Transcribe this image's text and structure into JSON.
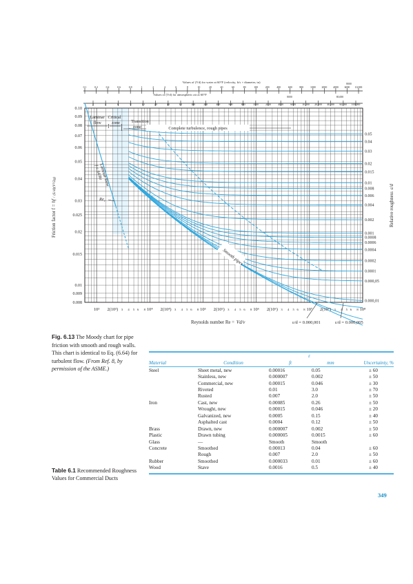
{
  "colors": {
    "accent": "#1a8fc8",
    "curve": "#2ea8e0",
    "grid": "#231f20"
  },
  "chart": {
    "top_axis_water_title": "Values of (Vd) for water at 60°F (velocity, ft/s × diameter, in)",
    "top_axis_air_title": "Values of (Vd) for atmospheric air at 60°F",
    "top_axis_water_ticks": [
      "0.1",
      "0.2",
      "0.4",
      "0.6",
      "0.8",
      "1",
      "2",
      "4",
      "6",
      "8",
      "10",
      "20",
      "40",
      "60",
      "80",
      "100",
      "200",
      "400",
      "600",
      "800",
      "1000",
      "2000",
      "4000",
      "6000",
      "10,000"
    ],
    "top_axis_water_extra": "8000",
    "top_axis_air_ticks": [
      "2",
      "4",
      "6",
      "8",
      "10",
      "20",
      "40",
      "60",
      "100",
      "200",
      "400",
      "600",
      "800",
      "1000",
      "2000",
      "4000",
      "6000",
      "10,000",
      "20,000",
      "40,000",
      "60,000",
      "100,000"
    ],
    "top_axis_air_extra_a": "8000",
    "top_axis_air_extra_b": "80,000",
    "regions": {
      "laminar": "Laminar flow",
      "critical": "Critical zone",
      "transition": "Transition zone",
      "complete": "Complete turbulence, rough pipes"
    },
    "laminar_label": "Laminar flow",
    "laminar_formula": "f = 64/Re",
    "rec_label": "Re",
    "rec_sub": "c",
    "smooth_label": "Smooth pipes",
    "y_axis_label": "Friction factor f =",
    "y_axis_formula_num": "hf",
    "y_axis_formula_den": "(L/d)(V²/2g)",
    "y_ticks": [
      "0.10",
      "0.09",
      "0.08",
      "0.07",
      "0.06",
      "0.05",
      "0.04",
      "0.03",
      "0.025",
      "0.02",
      "0.015",
      "0.01",
      "0.009",
      "0.008"
    ],
    "x_ticks": [
      "10³",
      "2(10³)",
      "3",
      "4",
      "5",
      "6",
      "8",
      "10⁴",
      "2(10⁴)",
      "3",
      "4",
      "5",
      "6",
      "8",
      "10⁵",
      "2(10⁵)",
      "3",
      "4",
      "5",
      "6",
      "8",
      "10⁶",
      "2(10⁶)",
      "3",
      "4",
      "5",
      "6",
      "8",
      "10⁷",
      "2(10⁷)",
      "3",
      "4",
      "5",
      "6",
      "8",
      "10⁸"
    ],
    "x_label": "Reynolds number Re =",
    "x_label_formula": "Vd/ν",
    "rr_label": "Relative roughness",
    "rr_formula": "ε/d",
    "rr_ticks": [
      "0.05",
      "0.04",
      "0.03",
      "0.02",
      "0.015",
      "0.01",
      "0.008",
      "0.006",
      "0.004",
      "0.002",
      "0.001",
      "0.0008",
      "0.0006",
      "0.0004",
      "0.0002",
      "0.0001",
      "0.000,05",
      "0.000,01"
    ],
    "bottom_callout_a": "ε/d = 0.000,001",
    "bottom_callout_b": "ε/d = 0.000,005"
  },
  "figure_caption": {
    "label": "Fig. 6.13",
    "text": " The Moody chart for pipe friction with smooth and rough walls. This chart is identical to Eq. (6.64) for turbulent flow. ",
    "source": "(From Ref. 8, by permission of the ASME.)"
  },
  "table_caption": {
    "label": "Table 6.1",
    "text": " Recommended Roughness Values for Commercial Ducts"
  },
  "table": {
    "eps_header": "ε",
    "headers": [
      "Material",
      "Condition",
      "ft",
      "mm",
      "Uncertainty, %"
    ],
    "rows": [
      [
        "Steel",
        "Sheet metal, new",
        "0.00016",
        "0.05",
        "± 60"
      ],
      [
        "",
        "Stainless, new",
        "0.000007",
        "0.002",
        "± 50"
      ],
      [
        "",
        "Commercial, new",
        "0.00015",
        "0.046",
        "± 30"
      ],
      [
        "",
        "Riveted",
        "0.01",
        "3.0",
        "± 70"
      ],
      [
        "",
        "Rusted",
        "0.007",
        "2.0",
        "± 50"
      ],
      [
        "Iron",
        "Cast, new",
        "0.00085",
        "0.26",
        "± 50"
      ],
      [
        "",
        "Wrought, new",
        "0.00015",
        "0.046",
        "± 20"
      ],
      [
        "",
        "Galvanized, new",
        "0.0005",
        "0.15",
        "± 40"
      ],
      [
        "",
        "Asphalted cast",
        "0.0004",
        "0.12",
        "± 50"
      ],
      [
        "Brass",
        "Drawn, new",
        "0.000007",
        "0.002",
        "± 50"
      ],
      [
        "Plastic",
        "Drawn tubing",
        "0.000005",
        "0.0015",
        "± 60"
      ],
      [
        "Glass",
        "—",
        "Smooth",
        "Smooth",
        ""
      ],
      [
        "Concrete",
        "Smoothed",
        "0.00013",
        "0.04",
        "± 60"
      ],
      [
        "",
        "Rough",
        "0.007",
        "2.0",
        "± 50"
      ],
      [
        "Rubber",
        "Smoothed",
        "0.000033",
        "0.01",
        "± 60"
      ],
      [
        "Wood",
        "Stave",
        "0.0016",
        "0.5",
        "± 40"
      ]
    ]
  },
  "page_number": "349"
}
